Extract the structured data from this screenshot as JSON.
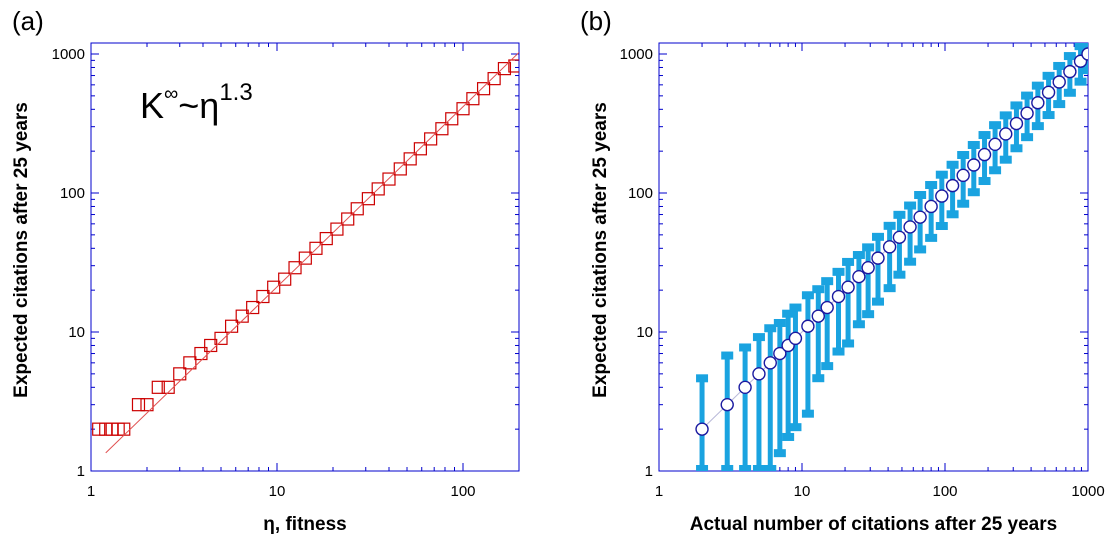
{
  "chart_data": [
    {
      "panel_label": "(a)",
      "type": "scatter",
      "xscale": "log",
      "yscale": "log",
      "xlim": [
        1,
        200
      ],
      "ylim": [
        1,
        1200
      ],
      "xlabel": "η, fitness",
      "ylabel": "Expected  citations after 25 years",
      "xticks": [
        1,
        10,
        100
      ],
      "yticks": [
        1,
        10,
        100,
        1000
      ],
      "annotation": {
        "base": "K",
        "sup1": "∞",
        "mid": "~η",
        "sup2": "1.3"
      },
      "series": [
        {
          "marker": "square",
          "color": "#cc0000",
          "x": [
            1.1,
            1.2,
            1.3,
            1.4,
            1.5,
            1.8,
            2.0,
            2.3,
            2.6,
            3.0,
            3.4,
            3.9,
            4.4,
            5.0,
            5.7,
            6.5,
            7.4,
            8.4,
            9.6,
            11,
            12.5,
            14.2,
            16.2,
            18.4,
            21,
            24,
            27,
            31,
            35,
            40,
            46,
            52,
            59,
            67,
            77,
            87,
            100,
            113,
            129,
            147,
            167,
            190
          ],
          "y": [
            2,
            2,
            2,
            2,
            2,
            3,
            3,
            4,
            4,
            5,
            6,
            7,
            8,
            9,
            11,
            13,
            15,
            18,
            21,
            24,
            29,
            34,
            40,
            47,
            55,
            65,
            77,
            91,
            107,
            126,
            149,
            176,
            208,
            245,
            290,
            342,
            404,
            477,
            563,
            665,
            785,
            820
          ]
        },
        {
          "type": "line",
          "color": "#e05050",
          "x": [
            1.2,
            200
          ],
          "y": [
            1.35,
            1026
          ]
        }
      ]
    },
    {
      "panel_label": "(b)",
      "type": "scatter",
      "xscale": "log",
      "yscale": "log",
      "xlim": [
        1,
        1000
      ],
      "ylim": [
        1,
        1200
      ],
      "xlabel": "Actual number of citations after 25 years",
      "ylabel": "Expected  citations after 25 years",
      "xticks": [
        1,
        10,
        100,
        1000
      ],
      "yticks": [
        1,
        10,
        100,
        1000
      ],
      "series": [
        {
          "marker": "circle",
          "color": "#1a1aa0",
          "errorbar_color": "#1aa3e0",
          "x": [
            2,
            3,
            4,
            5,
            6,
            7,
            8,
            9,
            11,
            13,
            15,
            18,
            21,
            25,
            29,
            34,
            41,
            48,
            57,
            67,
            80,
            95,
            113,
            134,
            159,
            189,
            224,
            266,
            316,
            375,
            446,
            530,
            629,
            747,
            887,
            1000
          ],
          "y": [
            2,
            3,
            4,
            5,
            6,
            7,
            8,
            9,
            11,
            13,
            15,
            18,
            21,
            25,
            29,
            34,
            41,
            48,
            57,
            67,
            80,
            95,
            113,
            134,
            159,
            189,
            224,
            266,
            316,
            375,
            446,
            530,
            629,
            747,
            887,
            1000
          ],
          "ylow": [
            1,
            1,
            1,
            1,
            1,
            1.3,
            1.7,
            2,
            2.5,
            4.5,
            5.5,
            7,
            8,
            11,
            13,
            16,
            20,
            25,
            31,
            38,
            46,
            56,
            68,
            81,
            98,
            118,
            141,
            168,
            203,
            244,
            293,
            352,
            422,
            509,
            612,
            740
          ],
          "yhigh": [
            4.8,
            7,
            8,
            9.5,
            11,
            12,
            14,
            15.5,
            19,
            21,
            24,
            28,
            33,
            37,
            42,
            50,
            60,
            72,
            84,
            100,
            118,
            140,
            165,
            194,
            229,
            270,
            318,
            374,
            441,
            519,
            612,
            720,
            848,
            999,
            1177,
            1200
          ]
        }
      ]
    }
  ]
}
